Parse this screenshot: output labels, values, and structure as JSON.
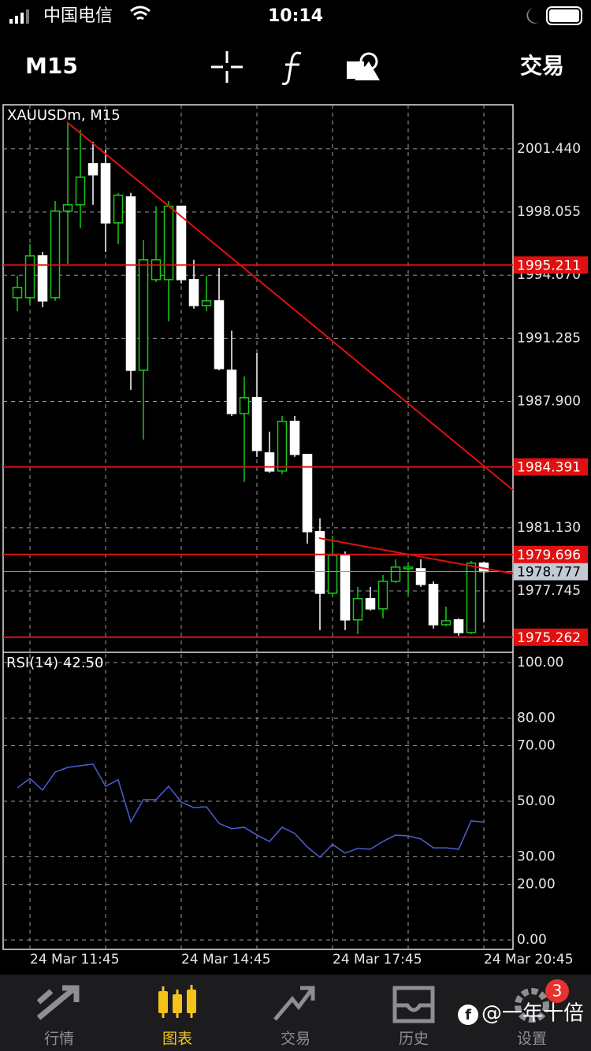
{
  "status_bar": {
    "carrier": "中国电信",
    "time": "10:14"
  },
  "toolbar": {
    "timeframe": "M15",
    "trade": "交易"
  },
  "chart_data": [
    {
      "type": "candlestick",
      "title": "XAUUSDm, M15",
      "open": [
        1993.46,
        1993.46,
        1995.7,
        1993.46,
        1998.1,
        1998.44,
        2000.64,
        2000.64,
        1997.47,
        1998.86,
        1989.57,
        1994.43,
        1994.43,
        1998.36,
        1994.43,
        1993.04,
        1993.29,
        1989.57,
        1987.25,
        1988.1,
        1985.14,
        1984.17,
        1986.83,
        1985.06,
        1980.92,
        1977.62,
        1979.65,
        1976.19,
        1977.33,
        1976.78,
        1978.26,
        1978.93,
        1978.93,
        1978.09,
        1975.93,
        1976.19,
        1975.51,
        1979.23
      ],
      "high": [
        1994.64,
        1996.33,
        1995.91,
        1998.65,
        2002.88,
        2002.45,
        2001.82,
        2001.4,
        1999.08,
        1999.08,
        1996.54,
        1998.36,
        1998.65,
        1998.36,
        1995.49,
        1994.64,
        1995.06,
        1991.69,
        1989.24,
        1990.5,
        1986.28,
        1987.12,
        1987.12,
        1985.06,
        1981.63,
        1980.71,
        1979.86,
        1977.96,
        1977.96,
        1978.59,
        1979.44,
        1979.23,
        1979.44,
        1978.26,
        1976.9,
        1976.27,
        1979.35,
        1979.31
      ],
      "low": [
        1992.74,
        1993.16,
        1992.95,
        1993.29,
        1995.27,
        1997.18,
        1998.44,
        1995.91,
        1996.33,
        1988.52,
        1985.86,
        1994.3,
        1992.19,
        1994.22,
        1992.87,
        1992.74,
        1989.57,
        1987.12,
        1983.58,
        1984.93,
        1984.08,
        1984.0,
        1984.93,
        1980.28,
        1975.64,
        1977.41,
        1975.64,
        1975.43,
        1976.69,
        1976.27,
        1978.17,
        1977.54,
        1977.96,
        1975.72,
        1975.85,
        1975.34,
        1975.43,
        1976.06
      ],
      "close": [
        1994.01,
        1995.7,
        1993.29,
        1998.1,
        1998.44,
        1999.92,
        2000.05,
        1997.47,
        1998.95,
        1989.57,
        1995.49,
        1995.49,
        1998.36,
        1994.43,
        1993.04,
        1993.29,
        1989.66,
        1987.25,
        1988.1,
        1985.27,
        1984.17,
        1986.83,
        1985.06,
        1980.92,
        1977.62,
        1979.65,
        1976.19,
        1977.33,
        1976.78,
        1978.26,
        1979.02,
        1979.02,
        1978.09,
        1975.93,
        1976.14,
        1975.51,
        1979.23,
        1978.777
      ],
      "x_labels": [
        "24 Mar 11:45",
        "24 Mar 14:45",
        "24 Mar 17:45",
        "24 Mar 20:45"
      ],
      "ylim": [
        1974.45,
        2003.8
      ],
      "yticks": [
        {
          "value": 2001.44,
          "label": "2001.440"
        },
        {
          "value": 1998.055,
          "label": "1998.055"
        },
        {
          "value": 1994.67,
          "label": "1994.670"
        },
        {
          "value": 1991.285,
          "label": "1991.285"
        },
        {
          "value": 1987.9,
          "label": "1987.900"
        },
        {
          "value": 1981.13,
          "label": "1981.130"
        },
        {
          "value": 1977.745,
          "label": "1977.745"
        }
      ],
      "levels": [
        {
          "value": 1995.211,
          "label": "1995.211"
        },
        {
          "value": 1984.391,
          "label": "1984.391"
        },
        {
          "value": 1979.696,
          "label": "1979.696"
        },
        {
          "value": 1975.262,
          "label": "1975.262"
        }
      ],
      "current_price": {
        "value": 1978.777,
        "label": "1978.777"
      },
      "bull_color": "#19c819",
      "bear_color": "#ffffff",
      "level_color": "#e01010",
      "grid": true
    },
    {
      "type": "line",
      "title": "RSI(14) 42.50",
      "values": [
        54.8,
        58.2,
        54.0,
        60.5,
        62.2,
        62.8,
        63.4,
        55.4,
        57.7,
        42.6,
        50.6,
        50.6,
        55.4,
        49.7,
        47.7,
        48.0,
        42.0,
        40.1,
        40.6,
        37.8,
        35.5,
        40.6,
        38.4,
        33.5,
        29.8,
        34.4,
        31.3,
        33.0,
        32.7,
        35.5,
        37.8,
        37.5,
        36.4,
        33.2,
        33.2,
        32.7,
        42.9,
        42.5
      ],
      "ylim": [
        -3.4,
        103.1
      ],
      "yticks": [
        {
          "value": 100,
          "label": "100.00"
        },
        {
          "value": 80,
          "label": "80.00"
        },
        {
          "value": 70,
          "label": "70.00"
        },
        {
          "value": 50,
          "label": "50.00"
        },
        {
          "value": 30,
          "label": "30.00"
        },
        {
          "value": 20,
          "label": "20.00"
        },
        {
          "value": 0,
          "label": "0.00"
        }
      ],
      "color": "#4b5fd6",
      "grid": true
    }
  ],
  "tab_bar": {
    "tabs": [
      "行情",
      "图表",
      "交易",
      "历史",
      "设置"
    ],
    "active": 1,
    "badge": 3
  },
  "watermark": "@一年十倍"
}
